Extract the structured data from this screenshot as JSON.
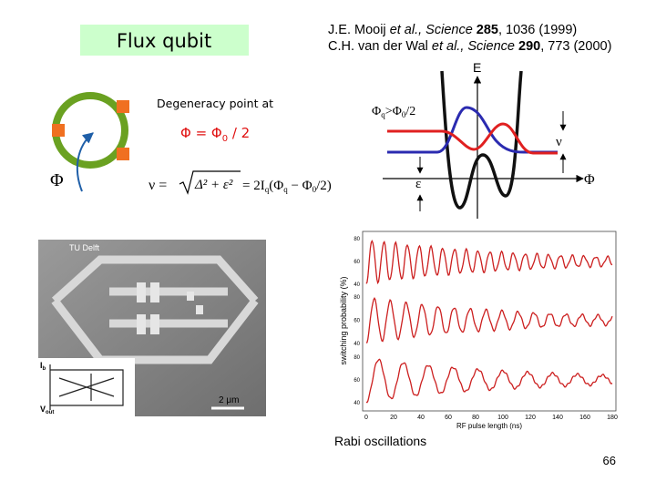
{
  "title": "Flux qubit",
  "references": [
    [
      "J.E. Mooij ",
      "et al., Science ",
      "285",
      ", 1036 (1999)"
    ],
    [
      "C.H. van der Wal ",
      "et al., Science ",
      "290",
      ", 773 (2000)"
    ]
  ],
  "degeneracy": {
    "text": "Degeneracy point at",
    "formula": [
      "Φ = Φ",
      "0",
      " / 2"
    ]
  },
  "ring_label": "Φ",
  "formula": {
    "lhs": "ν =",
    "radicand": "Δ² + ε²",
    "rhs": [
      "= 2I",
      "q",
      "(Φ",
      "q",
      " − Φ",
      "0",
      "/2)"
    ]
  },
  "energy_diagram": {
    "axis_e": "E",
    "condition": [
      "Φ",
      "q",
      ">Φ",
      "0",
      "/2"
    ],
    "nu": "ν",
    "epsilon": "ε",
    "axis_phi": "Φ"
  },
  "micrograph": {
    "lab": "TU Delft",
    "scale": "2 μm",
    "bias": "I",
    "bias_sub": "b",
    "out": "V",
    "out_sub": "out"
  },
  "rabi_plot": {
    "ylabel": "switching probability (%)",
    "xlabel": "RF pulse length (ns)",
    "xticks": [
      "0",
      "20",
      "40",
      "60",
      "80",
      "100",
      "120",
      "140",
      "160",
      "180"
    ],
    "panel_yticks": [
      [
        "80",
        "60",
        "40"
      ],
      [
        "80",
        "60",
        "40"
      ],
      [
        "80",
        "60",
        "40"
      ]
    ]
  },
  "caption": "Rabi oscillations",
  "page_number": "66"
}
